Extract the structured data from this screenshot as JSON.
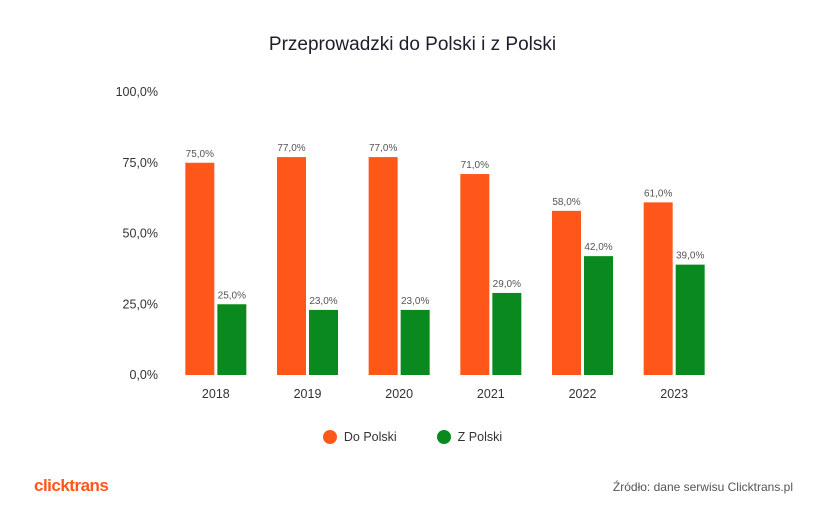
{
  "colors": {
    "series1": "#FF5719",
    "series2": "#0A8A1E",
    "logo": "#FF5719"
  },
  "chart_data": {
    "type": "bar",
    "title": "Przeprowadzki do Polski i z Polski",
    "categories": [
      "2018",
      "2019",
      "2020",
      "2021",
      "2022",
      "2023"
    ],
    "series": [
      {
        "name": "Do Polski",
        "values": [
          75.0,
          77.0,
          77.0,
          71.0,
          58.0,
          61.0
        ],
        "labels": [
          "75,0%",
          "77,0%",
          "77,0%",
          "71,0%",
          "58,0%",
          "61,0%"
        ]
      },
      {
        "name": "Z Polski",
        "values": [
          25.0,
          23.0,
          23.0,
          29.0,
          42.0,
          39.0
        ],
        "labels": [
          "25,0%",
          "23,0%",
          "23,0%",
          "29,0%",
          "42,0%",
          "39,0%"
        ]
      }
    ],
    "ylim": [
      0,
      100
    ],
    "yticks": [
      {
        "value": 0,
        "label": "0,0%"
      },
      {
        "value": 25,
        "label": "25,0%"
      },
      {
        "value": 50,
        "label": "50,0%"
      },
      {
        "value": 75,
        "label": "75,0%"
      },
      {
        "value": 100,
        "label": "100,0%"
      }
    ],
    "grid": false,
    "legend": "bottom-center"
  },
  "logo": "clicktrans",
  "source": "Źródło: dane serwisu Clicktrans.pl"
}
